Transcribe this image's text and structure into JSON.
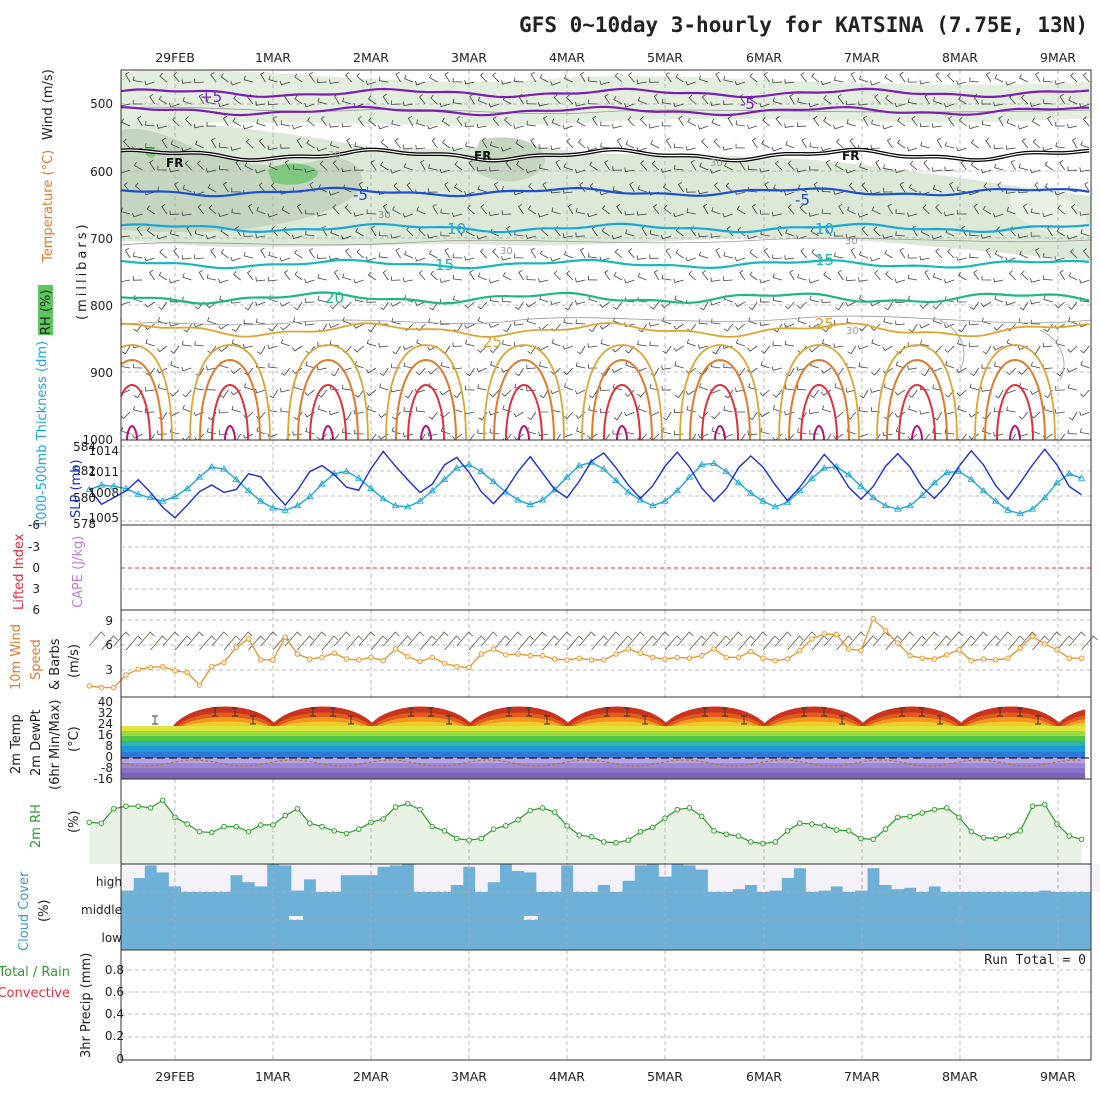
{
  "title": "GFS 0~10day 3-hourly for KATSINA (7.75E, 13N)",
  "dates": [
    "29FEB",
    "1MAR",
    "2MAR",
    "3MAR",
    "4MAR",
    "5MAR",
    "6MAR",
    "7MAR",
    "8MAR",
    "9MAR"
  ],
  "colors": {
    "purple": "#7b1fb3",
    "blue": "#1f4fd1",
    "cyan": "#1ca7d9",
    "teal": "#18b8b8",
    "green": "#22b588",
    "gold": "#dba531",
    "orange": "#e07a2a",
    "red": "#e02f3c",
    "rh": "#2e9a2e",
    "slp": "#1a2fd1",
    "cloud": "#6eb1d8",
    "grid": "#aaaaaa"
  },
  "panels": {
    "upper_air": {
      "ylabel_parts": [
        "RH (%)",
        "Temperature (°C)",
        "Wind (m/s)",
        "(millibars)"
      ],
      "y_ticks": [
        "500",
        "600",
        "700",
        "800",
        "900",
        "1000"
      ],
      "isotherm_labels": [
        "+5",
        "-5",
        "FR",
        "FR",
        "FR",
        "-5",
        "-5",
        "10",
        "10",
        "15",
        "15",
        "20",
        "25",
        "25"
      ],
      "rh_labels": [
        "30",
        "30",
        "30",
        "30",
        "30",
        "30"
      ]
    },
    "thickness_slp": {
      "ylabel_left": "1000-500mb Thickness (dm)",
      "ylabel_right": "SLP (mb)",
      "thickness_ticks": [
        "584",
        "582",
        "580",
        "578"
      ],
      "slp_ticks": [
        "1014",
        "1011",
        "1008",
        "1005"
      ]
    },
    "lifted_cape": {
      "ylabel_left": "Lifted Index",
      "ylabel_right": "CAPE (J/kg)",
      "ticks": [
        "-6",
        "-3",
        "0",
        "3",
        "6"
      ]
    },
    "wind10m": {
      "ylabel_parts": [
        "10m Wind",
        "Speed",
        "& Barbs",
        "(m/s)"
      ],
      "ticks": [
        "9",
        "6",
        "3"
      ]
    },
    "temp2m": {
      "ylabel_parts": [
        "2m Temp",
        "2m DewPt",
        "(6hr Min/Max)",
        "(°C)"
      ],
      "ticks": [
        "40",
        "32",
        "24",
        "16",
        "8",
        "0",
        "-8",
        "-16"
      ]
    },
    "rh2m": {
      "ylabel": "2m RH",
      "unit": "(%)"
    },
    "cloud": {
      "ylabel": "Cloud Cover",
      "unit": "(%)",
      "levels": [
        "high",
        "middle",
        "low"
      ]
    },
    "precip": {
      "ylabel_parts": [
        "Total / Rain",
        "Convective",
        "3hr Precip (mm)"
      ],
      "ticks": [
        "0.8",
        "0.6",
        "0.4",
        "0.2",
        "0"
      ],
      "run_total": "Run Total = 0"
    }
  },
  "chart_data": [
    {
      "type": "line",
      "title": "1000-500mb Thickness (dm)",
      "ylim": [
        578,
        585
      ],
      "x_step_hours": 3,
      "series": [
        {
          "name": "1000-500mb Thickness (dm)",
          "values": [
            581.0,
            581.4,
            581.3,
            581.1,
            580.6,
            580.3,
            580.0,
            580.4,
            581.1,
            582.1,
            583.0,
            582.8,
            581.9,
            580.9,
            580.0,
            579.4,
            579.2,
            579.6,
            580.4,
            581.5,
            582.4,
            582.6,
            582.0,
            581.1,
            580.2,
            579.6,
            579.5,
            580.0,
            580.9,
            581.9,
            582.9,
            583.2,
            582.6,
            581.7,
            580.8,
            580.1,
            579.7,
            580.1,
            581.0,
            582.1,
            583.1,
            583.4,
            582.8,
            581.8,
            580.8,
            580.1,
            579.6,
            580.0,
            580.9,
            582.1,
            583.2,
            583.3,
            582.6,
            581.6,
            580.7,
            580.0,
            579.5,
            579.9,
            580.9,
            582.0,
            582.9,
            583.0,
            582.3,
            581.3,
            580.3,
            579.6,
            579.3,
            579.6,
            580.5,
            581.6,
            582.5,
            582.6,
            581.9,
            580.9,
            580.0,
            579.2,
            578.9,
            579.3,
            580.3,
            581.6,
            582.4,
            582.0,
            581.1,
            580.2,
            579.6,
            579.0
          ]
        }
      ]
    },
    {
      "type": "line",
      "title": "SLP (mb)",
      "ylim": [
        1004,
        1015
      ],
      "x_step_hours": 3,
      "series": [
        {
          "name": "SLP (mb)",
          "values": [
            1008.6,
            1006.5,
            1007.4,
            1008.3,
            1009.8,
            1008.1,
            1006.1,
            1004.7,
            1006.4,
            1008.2,
            1009.1,
            1008.1,
            1008.5,
            1010.6,
            1010.2,
            1008.2,
            1006.4,
            1008.4,
            1010.9,
            1011.7,
            1010.5,
            1008.8,
            1008.4,
            1011.3,
            1013.6,
            1011.6,
            1009.8,
            1008.1,
            1009.2,
            1011.8,
            1012.8,
            1010.8,
            1008.2,
            1006.6,
            1008.4,
            1010.9,
            1012.9,
            1010.7,
            1008.5,
            1007.4,
            1009.6,
            1012.3,
            1013.4,
            1011.4,
            1009.1,
            1007.3,
            1009.0,
            1011.6,
            1013.5,
            1011.5,
            1008.7,
            1006.9,
            1008.6,
            1011.4,
            1013.0,
            1011.5,
            1009.1,
            1007.0,
            1008.8,
            1011.0,
            1013.2,
            1011.4,
            1008.8,
            1007.2,
            1008.9,
            1011.6,
            1013.3,
            1011.5,
            1008.8,
            1007.3,
            1009.1,
            1011.6,
            1013.7,
            1011.8,
            1009.0,
            1007.2,
            1009.4,
            1011.8,
            1013.9,
            1011.8,
            1008.9,
            1007.8,
            1010.1,
            1012.2,
            1011.9,
            1013.3
          ]
        }
      ]
    },
    {
      "type": "line",
      "title": "10m Wind Speed (m/s)",
      "ylim": [
        0,
        10
      ],
      "series": [
        {
          "name": "10m Wind Speed (m/s)",
          "values": [
            1.2,
            1.0,
            1.0,
            2.5,
            3.2,
            3.4,
            3.5,
            3.0,
            2.8,
            1.3,
            3.5,
            4.0,
            5.8,
            6.8,
            4.3,
            4.3,
            7.0,
            5.0,
            4.4,
            4.6,
            5.1,
            4.4,
            4.3,
            4.6,
            4.2,
            5.6,
            4.7,
            4.1,
            4.6,
            3.9,
            3.5,
            3.4,
            5.0,
            5.6,
            4.9,
            5.0,
            4.8,
            4.8,
            4.4,
            4.3,
            4.5,
            4.3,
            4.3,
            5.0,
            5.6,
            5.1,
            4.6,
            4.4,
            4.6,
            4.5,
            4.8,
            5.6,
            4.6,
            4.6,
            5.3,
            4.5,
            4.2,
            4.4,
            5.4,
            6.8,
            7.4,
            7.3,
            5.6,
            5.4,
            9.2,
            7.8,
            6.3,
            4.8,
            4.5,
            4.4,
            4.9,
            5.5,
            4.2,
            4.4,
            4.3,
            4.5,
            5.7,
            7.1,
            6.2,
            5.5,
            4.5,
            4.5,
            4.6,
            4.7,
            4.5,
            4.6
          ]
        }
      ]
    },
    {
      "type": "area",
      "title": "2m RH (%)",
      "ylim": [
        0,
        100
      ],
      "series": [
        {
          "name": "2m RH (%)",
          "values": [
            49,
            48,
            65,
            68,
            68,
            66,
            75,
            55,
            47,
            38,
            37,
            44,
            44,
            38,
            46,
            46,
            57,
            65,
            48,
            44,
            39,
            36,
            41,
            49,
            53,
            67,
            71,
            64,
            44,
            39,
            30,
            28,
            30,
            41,
            45,
            52,
            63,
            66,
            61,
            45,
            34,
            32,
            26,
            25,
            28,
            38,
            43,
            54,
            64,
            66,
            56,
            39,
            35,
            33,
            26,
            24,
            26,
            39,
            48,
            47,
            45,
            40,
            39,
            30,
            29,
            41,
            55,
            56,
            60,
            64,
            66,
            55,
            38,
            31,
            30,
            33,
            39,
            68,
            70,
            47,
            33,
            29,
            31,
            38,
            42,
            47,
            50,
            59
          ]
        }
      ]
    },
    {
      "type": "bar",
      "title": "Cloud Cover (%)",
      "ylim": [
        0,
        100
      ],
      "series": [
        {
          "name": "high",
          "values": [
            80,
            15,
            35,
            5,
            50,
            95,
            70,
            20,
            0,
            0,
            0,
            0,
            60,
            35,
            20,
            100,
            95,
            5,
            45,
            0,
            0,
            60,
            60,
            60,
            90,
            95,
            100,
            0,
            0,
            0,
            25,
            90,
            0,
            35,
            100,
            75,
            70,
            0,
            0,
            95,
            0,
            0,
            25,
            0,
            40,
            95,
            100,
            55,
            100,
            95,
            80,
            0,
            0,
            10,
            25,
            0,
            5,
            50,
            85,
            0,
            5,
            20,
            0,
            5,
            85,
            25,
            10,
            15,
            0,
            20,
            0,
            0,
            0,
            0,
            0,
            0,
            0,
            0,
            5,
            0,
            0,
            0,
            0,
            0,
            0,
            0
          ]
        }
      ]
    },
    {
      "type": "bar",
      "title": "3hr Precip (mm)",
      "ylim": [
        0,
        1
      ],
      "series": [
        {
          "name": "3hr Precip (mm)",
          "values": [
            0
          ]
        }
      ]
    }
  ]
}
